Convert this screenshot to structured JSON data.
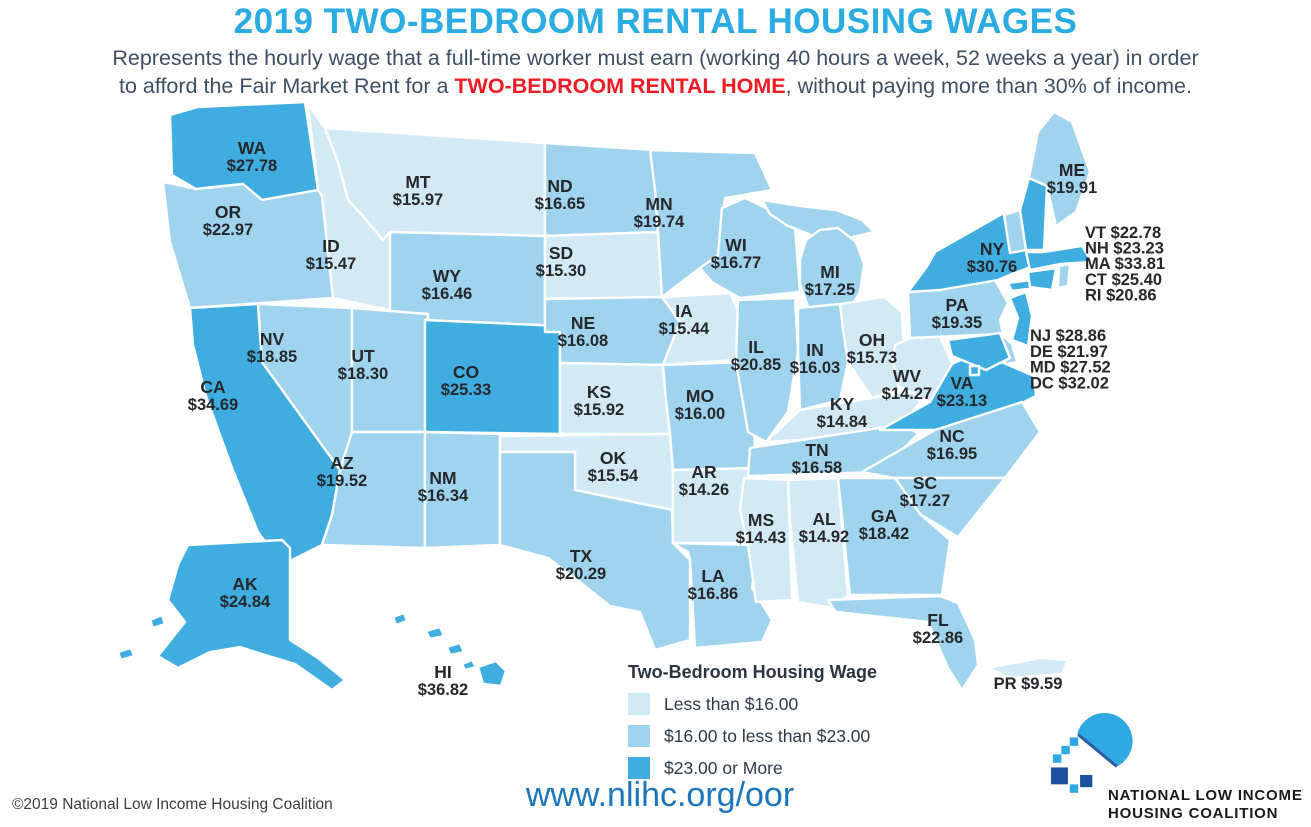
{
  "title": "2019 TWO-BEDROOM RENTAL HOUSING WAGES",
  "subtitle": {
    "line1": "Represents the hourly wage that a full-time worker must earn (working 40 hours a week, 52 weeks a year) in order",
    "line2_pre": "to afford the Fair Market Rent for a ",
    "highlight": "TWO-BEDROOM RENTAL HOME",
    "line2_post": ", without paying more than 30% of income."
  },
  "legend": {
    "title": "Two-Bedroom Housing Wage",
    "items": [
      {
        "label": "Less than $16.00",
        "color": "#d2e9f6"
      },
      {
        "label": "$16.00 to less than $23.00",
        "color": "#9fd3ee"
      },
      {
        "label": "$23.00 or More",
        "color": "#3fade0"
      }
    ]
  },
  "colors": {
    "title_blue": "#2aabe2",
    "highlight_red": "#ed1c24",
    "website_blue": "#1b75bc",
    "state_border": "#ffffff",
    "label_text": "#26272b"
  },
  "states": [
    {
      "abbr": "WA",
      "value": "$27.78",
      "category": 2
    },
    {
      "abbr": "OR",
      "value": "$22.97",
      "category": 1
    },
    {
      "abbr": "CA",
      "value": "$34.69",
      "category": 2
    },
    {
      "abbr": "NV",
      "value": "$18.85",
      "category": 1
    },
    {
      "abbr": "ID",
      "value": "$15.47",
      "category": 0
    },
    {
      "abbr": "MT",
      "value": "$15.97",
      "category": 0
    },
    {
      "abbr": "WY",
      "value": "$16.46",
      "category": 1
    },
    {
      "abbr": "UT",
      "value": "$18.30",
      "category": 1
    },
    {
      "abbr": "CO",
      "value": "$25.33",
      "category": 2
    },
    {
      "abbr": "AZ",
      "value": "$19.52",
      "category": 1
    },
    {
      "abbr": "NM",
      "value": "$16.34",
      "category": 1
    },
    {
      "abbr": "ND",
      "value": "$16.65",
      "category": 1
    },
    {
      "abbr": "SD",
      "value": "$15.30",
      "category": 0
    },
    {
      "abbr": "NE",
      "value": "$16.08",
      "category": 1
    },
    {
      "abbr": "KS",
      "value": "$15.92",
      "category": 0
    },
    {
      "abbr": "OK",
      "value": "$15.54",
      "category": 0
    },
    {
      "abbr": "TX",
      "value": "$20.29",
      "category": 1
    },
    {
      "abbr": "LA",
      "value": "$16.86",
      "category": 1
    },
    {
      "abbr": "MO",
      "value": "$16.00",
      "category": 1
    },
    {
      "abbr": "AR",
      "value": "$14.26",
      "category": 0
    },
    {
      "abbr": "IA",
      "value": "$15.44",
      "category": 0
    },
    {
      "abbr": "MN",
      "value": "$19.74",
      "category": 1
    },
    {
      "abbr": "WI",
      "value": "$16.77",
      "category": 1
    },
    {
      "abbr": "MI",
      "value": "$17.25",
      "category": 1
    },
    {
      "abbr": "IL",
      "value": "$20.85",
      "category": 1
    },
    {
      "abbr": "IN",
      "value": "$16.03",
      "category": 1
    },
    {
      "abbr": "OH",
      "value": "$15.73",
      "category": 0
    },
    {
      "abbr": "KY",
      "value": "$14.84",
      "category": 0
    },
    {
      "abbr": "TN",
      "value": "$16.58",
      "category": 1
    },
    {
      "abbr": "WV",
      "value": "$14.27",
      "category": 0
    },
    {
      "abbr": "VA",
      "value": "$23.13",
      "category": 2
    },
    {
      "abbr": "NC",
      "value": "$16.95",
      "category": 1
    },
    {
      "abbr": "SC",
      "value": "$17.27",
      "category": 1
    },
    {
      "abbr": "GA",
      "value": "$18.42",
      "category": 1
    },
    {
      "abbr": "AL",
      "value": "$14.92",
      "category": 0
    },
    {
      "abbr": "MS",
      "value": "$14.43",
      "category": 0
    },
    {
      "abbr": "FL",
      "value": "$22.86",
      "category": 1
    },
    {
      "abbr": "PA",
      "value": "$19.35",
      "category": 1
    },
    {
      "abbr": "NY",
      "value": "$30.76",
      "category": 2
    },
    {
      "abbr": "VT",
      "value": "$22.78",
      "category": 1
    },
    {
      "abbr": "NH",
      "value": "$23.23",
      "category": 2
    },
    {
      "abbr": "ME",
      "value": "$19.91",
      "category": 1
    },
    {
      "abbr": "MA",
      "value": "$33.81",
      "category": 2
    },
    {
      "abbr": "CT",
      "value": "$25.40",
      "category": 2
    },
    {
      "abbr": "RI",
      "value": "$20.86",
      "category": 1
    },
    {
      "abbr": "NJ",
      "value": "$28.86",
      "category": 2
    },
    {
      "abbr": "DE",
      "value": "$21.97",
      "category": 1
    },
    {
      "abbr": "MD",
      "value": "$27.52",
      "category": 2
    },
    {
      "abbr": "DC",
      "value": "$32.02",
      "category": 2
    },
    {
      "abbr": "AK",
      "value": "$24.84",
      "category": 2
    },
    {
      "abbr": "HI",
      "value": "$36.82",
      "category": 2
    },
    {
      "abbr": "PR",
      "value": "$9.59",
      "category": 0
    }
  ],
  "website": "www.nlihc.org/oor",
  "copyright": "©2019 National Low Income Housing Coalition",
  "logo": {
    "line1": "NATIONAL LOW INCOME",
    "line2": "HOUSING COALITION"
  }
}
